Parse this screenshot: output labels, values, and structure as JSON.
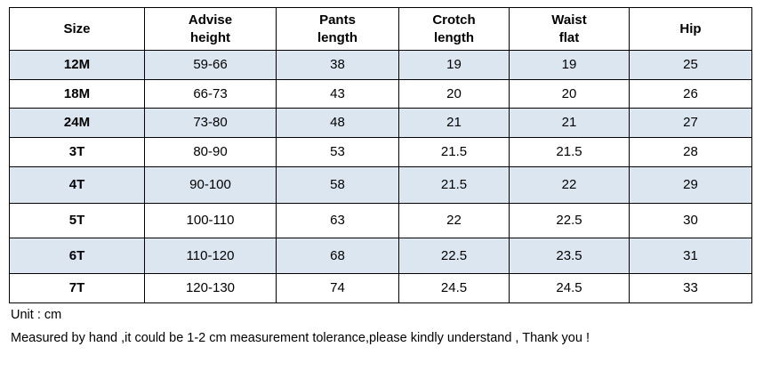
{
  "table": {
    "header": [
      "Size",
      "Advise\nheight",
      "Pants\nlength",
      "Crotch\nlength",
      "Waist\nflat",
      "Hip"
    ],
    "rows": [
      [
        "12M",
        "59-66",
        "38",
        "19",
        "19",
        "25"
      ],
      [
        "18M",
        "66-73",
        "43",
        "20",
        "20",
        "26"
      ],
      [
        "24M",
        "73-80",
        "48",
        "21",
        "21",
        "27"
      ],
      [
        "3T",
        "80-90",
        "53",
        "21.5",
        "21.5",
        "28"
      ],
      [
        "4T",
        "90-100",
        "58",
        "21.5",
        "22",
        "29"
      ],
      [
        "5T",
        "100-110",
        "63",
        "22",
        "22.5",
        "30"
      ],
      [
        "6T",
        "110-120",
        "68",
        "22.5",
        "23.5",
        "31"
      ],
      [
        "7T",
        "120-130",
        "74",
        "24.5",
        "24.5",
        "33"
      ]
    ]
  },
  "notes": [
    "Unit : cm",
    "Measured by hand ,it could be 1-2 cm measurement tolerance,please kindly understand , Thank you !"
  ]
}
